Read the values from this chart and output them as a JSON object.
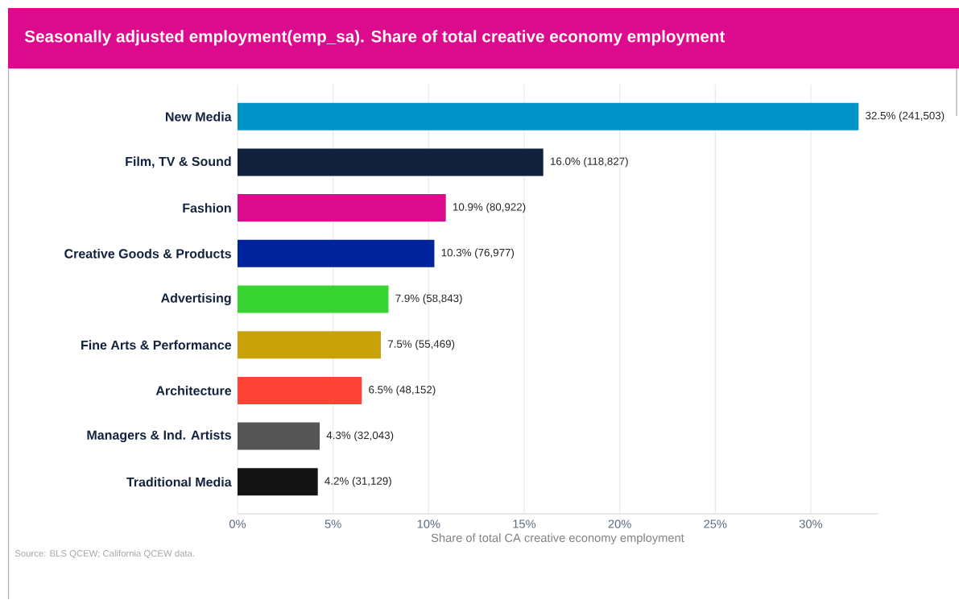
{
  "chart_data": {
    "type": "bar",
    "orientation": "horizontal",
    "title": "Seasonally adjusted employment(emp_sa). Share of total creative economy employment",
    "xlabel": "Share of total CA creative economy employment",
    "categories": [
      "New Media",
      "Film, TV & Sound",
      "Fashion",
      "Creative Goods & Products",
      "Advertising",
      "Fine Arts & Performance",
      "Architecture",
      "Managers & Ind. Artists",
      "Traditional Media"
    ],
    "values": [
      32.5,
      16.0,
      10.9,
      10.3,
      7.9,
      7.5,
      6.5,
      4.3,
      4.2
    ],
    "value_labels": [
      "32.5% (241,503)",
      "16.0% (118,827)",
      "10.9% (80,922)",
      "10.3% (76,977)",
      "7.9% (58,843)",
      "7.5% (55,469)",
      "6.5% (48,152)",
      "4.3% (32,043)",
      "4.2% (31,129)"
    ],
    "colors": [
      "#0094c8",
      "#12213b",
      "#dc0a8c",
      "#00229a",
      "#36d331",
      "#c8a208",
      "#ff4136",
      "#555555",
      "#141414"
    ],
    "xlim": [
      0,
      33.5
    ],
    "xticks": [
      {
        "value": 0,
        "label": "0%"
      },
      {
        "value": 5,
        "label": "5%"
      },
      {
        "value": 10,
        "label": "10%"
      },
      {
        "value": 15,
        "label": "15%"
      },
      {
        "value": 20,
        "label": "20%"
      },
      {
        "value": 25,
        "label": "25%"
      },
      {
        "value": 30,
        "label": "30%"
      }
    ],
    "grid": "x",
    "annotations": [
      "Source: BLS QCEW; California QCEW data."
    ]
  }
}
